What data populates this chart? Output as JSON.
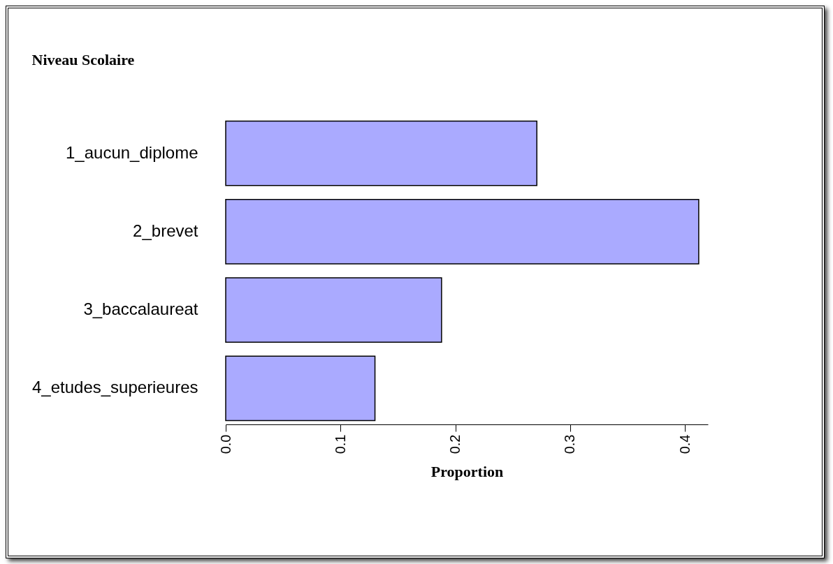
{
  "chart_data": {
    "type": "bar",
    "orientation": "horizontal",
    "title": "Niveau Scolaire",
    "xlabel": "Proportion",
    "categories": [
      "1_aucun_diplome",
      "2_brevet",
      "3_baccalaureat",
      "4_etudes_superieures"
    ],
    "values": [
      0.271,
      0.412,
      0.188,
      0.13
    ],
    "color": "#aaaaff",
    "xlim": [
      0,
      0.42
    ],
    "xticks": [
      {
        "value": 0,
        "label": "0.0"
      },
      {
        "value": 0.1,
        "label": "0.1"
      },
      {
        "value": 0.2,
        "label": "0.2"
      },
      {
        "value": 0.3,
        "label": "0.3"
      },
      {
        "value": 0.4,
        "label": "0.4"
      }
    ],
    "grid": false
  }
}
